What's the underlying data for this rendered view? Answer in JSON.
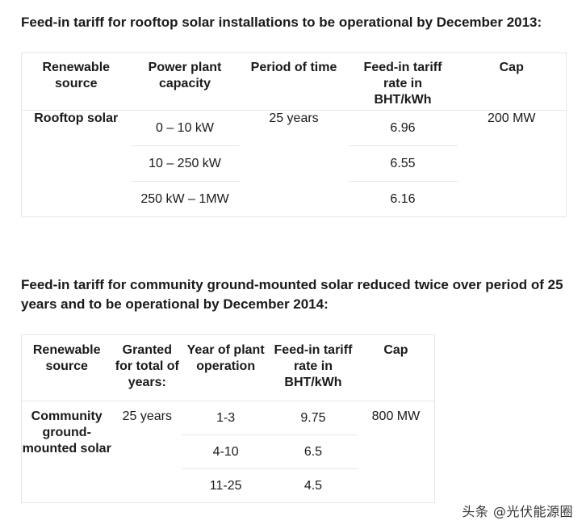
{
  "section1": {
    "heading": "Feed-in tariff for rooftop solar installations to be operational by December 2013:",
    "columns": [
      "Renewable source",
      "Power plant capacity",
      "Period of time",
      "Feed-in tariff rate in BHT/kWh",
      "Cap"
    ],
    "source": "Rooftop solar",
    "period": "25 years",
    "cap": "200 MW",
    "rows": [
      {
        "capacity": "0 – 10 kW",
        "rate": "6.96"
      },
      {
        "capacity": "10 – 250 kW",
        "rate": "6.55"
      },
      {
        "capacity": "250 kW – 1MW",
        "rate": "6.16"
      }
    ]
  },
  "section2": {
    "heading": "Feed-in tariff for community ground-mounted solar reduced twice over period of 25 years and to be operational by December 2014:",
    "columns": [
      "Renewable source",
      "Granted for total of years:",
      "Year of plant operation",
      "Feed-in tariff rate in BHT/kWh",
      "Cap"
    ],
    "source": "Community ground-mounted solar",
    "granted": "25 years",
    "cap": "800 MW",
    "rows": [
      {
        "year": "1-3",
        "rate": "9.75"
      },
      {
        "year": "4-10",
        "rate": "6.5"
      },
      {
        "year": "11-25",
        "rate": "4.5"
      }
    ]
  },
  "watermark": "头条 @光伏能源圈"
}
